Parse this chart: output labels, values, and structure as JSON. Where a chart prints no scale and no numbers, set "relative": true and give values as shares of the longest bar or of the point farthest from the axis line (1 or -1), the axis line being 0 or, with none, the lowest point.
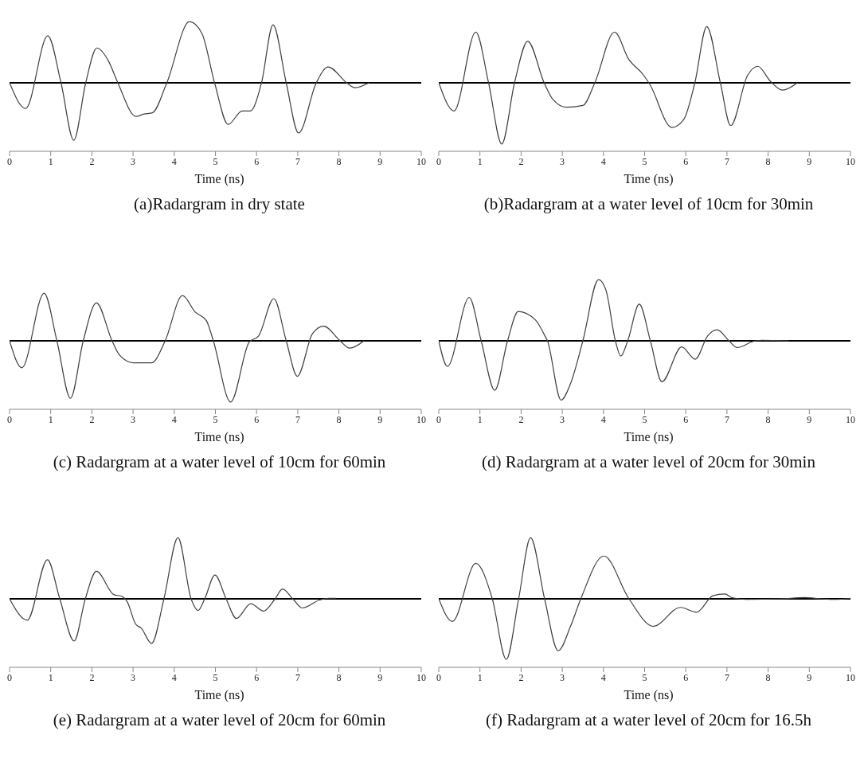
{
  "chart_data": [
    {
      "type": "line",
      "title": "(a)Radargram in dry state",
      "xlabel": "Time (ns)",
      "relative": true,
      "xlim": [
        0,
        10
      ],
      "xticks": [
        0,
        1,
        2,
        3,
        4,
        5,
        6,
        7,
        8,
        9,
        10
      ],
      "tick_labels": "x",
      "grid": false,
      "legend": false,
      "marker": "none",
      "line_style": "solid",
      "color": "#404040",
      "x": [
        0,
        0.39,
        0.93,
        1.25,
        1.56,
        1.85,
        2.12,
        2.4,
        2.63,
        3.07,
        3.27,
        3.47,
        3.82,
        4.37,
        4.67,
        4.98,
        5.31,
        5.65,
        5.85,
        6.12,
        6.4,
        6.72,
        7.02,
        7.45,
        7.74,
        8.19,
        8.39,
        8.73
      ],
      "values": [
        0,
        -0.42,
        0.77,
        0,
        -0.94,
        0,
        0.57,
        0.36,
        0,
        -0.55,
        -0.51,
        -0.49,
        0,
        1,
        0.81,
        0,
        -0.68,
        -0.46,
        -0.46,
        0,
        0.95,
        0,
        -0.82,
        0,
        0.26,
        0,
        -0.08,
        0
      ]
    },
    {
      "type": "line",
      "title": "(b)Radargram at a water level of 10cm for 30min",
      "xlabel": "Time (ns)",
      "relative": true,
      "xlim": [
        0,
        10
      ],
      "xticks": [
        0,
        1,
        2,
        3,
        4,
        5,
        6,
        7,
        8,
        9,
        10
      ],
      "tick_labels": "x",
      "grid": false,
      "legend": false,
      "marker": "none",
      "line_style": "solid",
      "color": "#404040",
      "x": [
        0,
        0.37,
        0.9,
        1.21,
        1.53,
        1.84,
        2.16,
        2.56,
        2.77,
        3.1,
        3.5,
        3.79,
        4.27,
        4.61,
        4.97,
        5.13,
        5.66,
        5.95,
        6.22,
        6.51,
        6.84,
        7.09,
        7.5,
        7.75,
        8.05,
        8.35,
        8.71
      ],
      "values": [
        0,
        -0.46,
        0.83,
        0,
        -1,
        0,
        0.68,
        0,
        -0.27,
        -0.4,
        -0.37,
        0,
        0.83,
        0.39,
        0.13,
        -0.03,
        -0.73,
        -0.6,
        0,
        0.92,
        0,
        -0.7,
        0.12,
        0.27,
        0.03,
        -0.12,
        0
      ]
    },
    {
      "type": "line",
      "title": "(c) Radargram at a water level of 10cm for 60min",
      "xlabel": "Time (ns)",
      "relative": true,
      "xlim": [
        0,
        10
      ],
      "xticks": [
        0,
        1,
        2,
        3,
        4,
        5,
        6,
        7,
        8,
        9,
        10
      ],
      "tick_labels": "x",
      "grid": false,
      "legend": false,
      "marker": "none",
      "line_style": "solid",
      "color": "#404040",
      "x": [
        0,
        0.3,
        0.84,
        1.15,
        1.48,
        1.79,
        2.11,
        2.49,
        2.68,
        3.01,
        3.45,
        3.78,
        4.2,
        4.51,
        4.78,
        4.95,
        5.37,
        5.82,
        6.05,
        6.42,
        6.72,
        6.99,
        7.36,
        7.63,
        8.03,
        8.26,
        8.61
      ],
      "values": [
        0,
        -0.44,
        0.78,
        0,
        -0.94,
        0,
        0.62,
        0,
        -0.24,
        -0.36,
        -0.36,
        0,
        0.74,
        0.47,
        0.33,
        0,
        -1,
        -0.02,
        0.08,
        0.69,
        0,
        -0.58,
        0.12,
        0.24,
        0,
        -0.12,
        0
      ]
    },
    {
      "type": "line",
      "title": "(d) Radargram at a water level of 20cm for 30min",
      "xlabel": "Time (ns)",
      "relative": true,
      "xlim": [
        0,
        10
      ],
      "xticks": [
        0,
        1,
        2,
        3,
        4,
        5,
        6,
        7,
        8,
        9,
        10
      ],
      "tick_labels": "x",
      "grid": false,
      "legend": false,
      "marker": "none",
      "line_style": "solid",
      "color": "#404040",
      "x": [
        0,
        0.21,
        0.74,
        1.03,
        1.36,
        1.67,
        1.93,
        2.35,
        2.58,
        2.64,
        2.97,
        3.2,
        3.5,
        3.88,
        4.06,
        4.29,
        4.42,
        4.59,
        4.87,
        5.14,
        5.42,
        5.9,
        6.23,
        6.53,
        6.76,
        7.05,
        7.25,
        7.64,
        7.84,
        8.5
      ],
      "values": [
        0,
        -0.42,
        0.71,
        0,
        -0.81,
        0,
        0.48,
        0.34,
        0.08,
        0,
        -0.97,
        -0.7,
        0,
        1,
        0.83,
        0,
        -0.25,
        0,
        0.6,
        0,
        -0.67,
        -0.1,
        -0.3,
        0.08,
        0.18,
        0,
        -0.11,
        -0.01,
        0.01,
        0
      ]
    },
    {
      "type": "line",
      "title": "(e) Radargram at a water level of 20cm for 60min",
      "xlabel": "Time (ns)",
      "relative": true,
      "xlim": [
        0,
        10
      ],
      "xticks": [
        0,
        1,
        2,
        3,
        4,
        5,
        6,
        7,
        8,
        9,
        10
      ],
      "tick_labels": "x",
      "grid": false,
      "legend": false,
      "marker": "none",
      "line_style": "solid",
      "color": "#404040",
      "x": [
        0,
        0.43,
        0.92,
        1.22,
        1.57,
        1.84,
        2.11,
        2.53,
        2.73,
        2.86,
        3.06,
        3.2,
        3.45,
        3.75,
        4.09,
        4.41,
        4.58,
        4.74,
        4.99,
        5.26,
        5.51,
        5.86,
        6.17,
        6.45,
        6.63,
        6.88,
        7.11,
        7.53,
        7.76,
        7.93
      ],
      "values": [
        0,
        -0.35,
        0.64,
        0,
        -0.69,
        0,
        0.45,
        0.07,
        0.04,
        -0.05,
        -0.41,
        -0.48,
        -0.73,
        0,
        1,
        0,
        -0.19,
        0,
        0.39,
        0,
        -0.32,
        -0.08,
        -0.2,
        0,
        0.16,
        0,
        -0.15,
        -0.02,
        0.01,
        0.01
      ]
    },
    {
      "type": "line",
      "title": "(f) Radargram at a water level of 20cm for 16.5h",
      "xlabel": "Time (ns)",
      "relative": true,
      "xlim": [
        0,
        10
      ],
      "xticks": [
        0,
        1,
        2,
        3,
        4,
        5,
        6,
        7,
        8,
        9,
        10
      ],
      "tick_labels": "x",
      "grid": false,
      "legend": false,
      "marker": "none",
      "line_style": "solid",
      "color": "#404040",
      "x": [
        0,
        0.33,
        0.9,
        1.3,
        1.64,
        1.94,
        2.23,
        2.57,
        2.9,
        3.2,
        3.45,
        4.01,
        4.62,
        5.21,
        5.87,
        6.26,
        6.66,
        6.95,
        7.12,
        7.48,
        8.3,
        8.9,
        9.3,
        9.6,
        10
      ],
      "values": [
        0,
        -0.37,
        0.58,
        0,
        -0.99,
        0,
        1,
        0,
        -0.85,
        -0.45,
        0,
        0.7,
        0,
        -0.45,
        -0.14,
        -0.22,
        0.05,
        0.08,
        0.02,
        -0.01,
        0,
        0.02,
        0,
        -0.01,
        0.01
      ]
    }
  ]
}
